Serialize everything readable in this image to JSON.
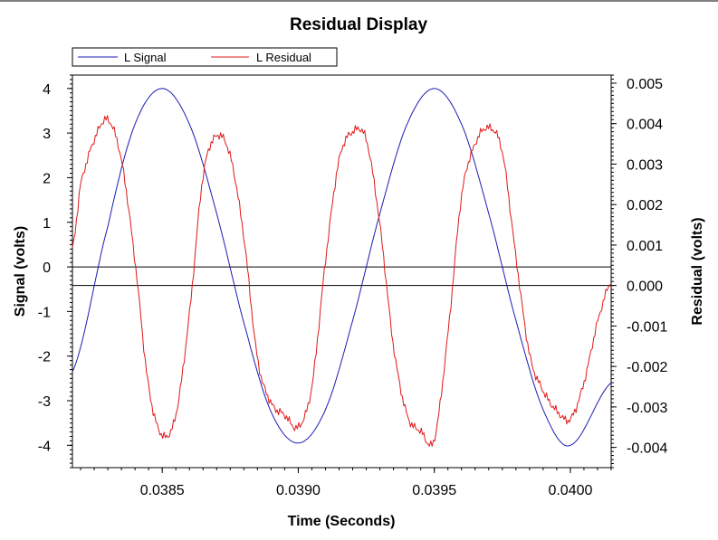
{
  "chart_data": {
    "type": "line",
    "title": "Residual Display",
    "xlabel": "Time (Seconds)",
    "ylabel_left": "Signal (volts)",
    "ylabel_right": "Residual (volts)",
    "xlim": [
      0.03817,
      0.04015
    ],
    "ylim_left": [
      -4.5,
      4.3
    ],
    "ylim_right": [
      -0.0045,
      0.0052
    ],
    "x_ticks": [
      {
        "value": 0.0385,
        "label": "0.0385"
      },
      {
        "value": 0.039,
        "label": "0.0390"
      },
      {
        "value": 0.0395,
        "label": "0.0395"
      },
      {
        "value": 0.04,
        "label": "0.0400"
      }
    ],
    "y_left_ticks": [
      {
        "value": 4,
        "label": "4"
      },
      {
        "value": 3,
        "label": "3"
      },
      {
        "value": 2,
        "label": "2"
      },
      {
        "value": 1,
        "label": "1"
      },
      {
        "value": 0,
        "label": "0"
      },
      {
        "value": -1,
        "label": "-1"
      },
      {
        "value": -2,
        "label": "-2"
      },
      {
        "value": -3,
        "label": "-3"
      },
      {
        "value": -4,
        "label": "-4"
      }
    ],
    "y_right_ticks": [
      {
        "value": 0.005,
        "label": "0.005"
      },
      {
        "value": 0.004,
        "label": "0.004"
      },
      {
        "value": 0.003,
        "label": "0.003"
      },
      {
        "value": 0.002,
        "label": "0.002"
      },
      {
        "value": 0.001,
        "label": "0.001"
      },
      {
        "value": 0.0,
        "label": "0.000"
      },
      {
        "value": -0.001,
        "label": "-0.001"
      },
      {
        "value": -0.002,
        "label": "-0.002"
      },
      {
        "value": -0.003,
        "label": "-0.003"
      },
      {
        "value": -0.004,
        "label": "-0.004"
      }
    ],
    "legend_position": "top-left",
    "grid": false,
    "series": [
      {
        "name": "L Signal",
        "axis": "left",
        "color": "#1c1cb4",
        "x": [
          0.03817,
          0.0383,
          0.0384,
          0.0385,
          0.0386,
          0.0387,
          0.0388,
          0.0389,
          0.039,
          0.0391,
          0.0392,
          0.0393,
          0.0394,
          0.0395,
          0.0396,
          0.0397,
          0.0398,
          0.0399,
          0.04,
          0.04015
        ],
        "y": [
          -2.35,
          0.9,
          3.2,
          4.0,
          3.2,
          1.2,
          -1.25,
          -3.25,
          -3.95,
          -3.2,
          -1.2,
          1.2,
          3.2,
          4.0,
          3.2,
          1.2,
          -1.2,
          -3.2,
          -4.0,
          -2.6
        ]
      },
      {
        "name": "L Residual",
        "axis": "right",
        "color": "#e01818",
        "x": [
          0.03817,
          0.0382,
          0.03825,
          0.0383,
          0.03835,
          0.0384,
          0.03845,
          0.0385,
          0.03855,
          0.0386,
          0.03865,
          0.0387,
          0.03875,
          0.0388,
          0.03885,
          0.0389,
          0.03895,
          0.039,
          0.03905,
          0.0391,
          0.03915,
          0.0392,
          0.03925,
          0.0393,
          0.03935,
          0.0394,
          0.03945,
          0.0395,
          0.03955,
          0.0396,
          0.03965,
          0.0397,
          0.03975,
          0.0398,
          0.03985,
          0.0399,
          0.03995,
          0.04,
          0.04005,
          0.0401,
          0.04015
        ],
        "y": [
          0.0009,
          0.0025,
          0.0036,
          0.0041,
          0.0031,
          0.0006,
          -0.0025,
          -0.0037,
          -0.0032,
          -0.0007,
          0.0027,
          0.0037,
          0.0032,
          0.0012,
          -0.0018,
          -0.0029,
          -0.0032,
          -0.0035,
          -0.0025,
          0.0006,
          0.0031,
          0.0038,
          0.0036,
          0.0015,
          -0.0015,
          -0.0032,
          -0.0036,
          -0.0038,
          -0.0012,
          0.0022,
          0.0035,
          0.0039,
          0.0033,
          0.0007,
          -0.0017,
          -0.0026,
          -0.0031,
          -0.0033,
          -0.0024,
          -0.0009,
          0.0001
        ]
      }
    ]
  }
}
